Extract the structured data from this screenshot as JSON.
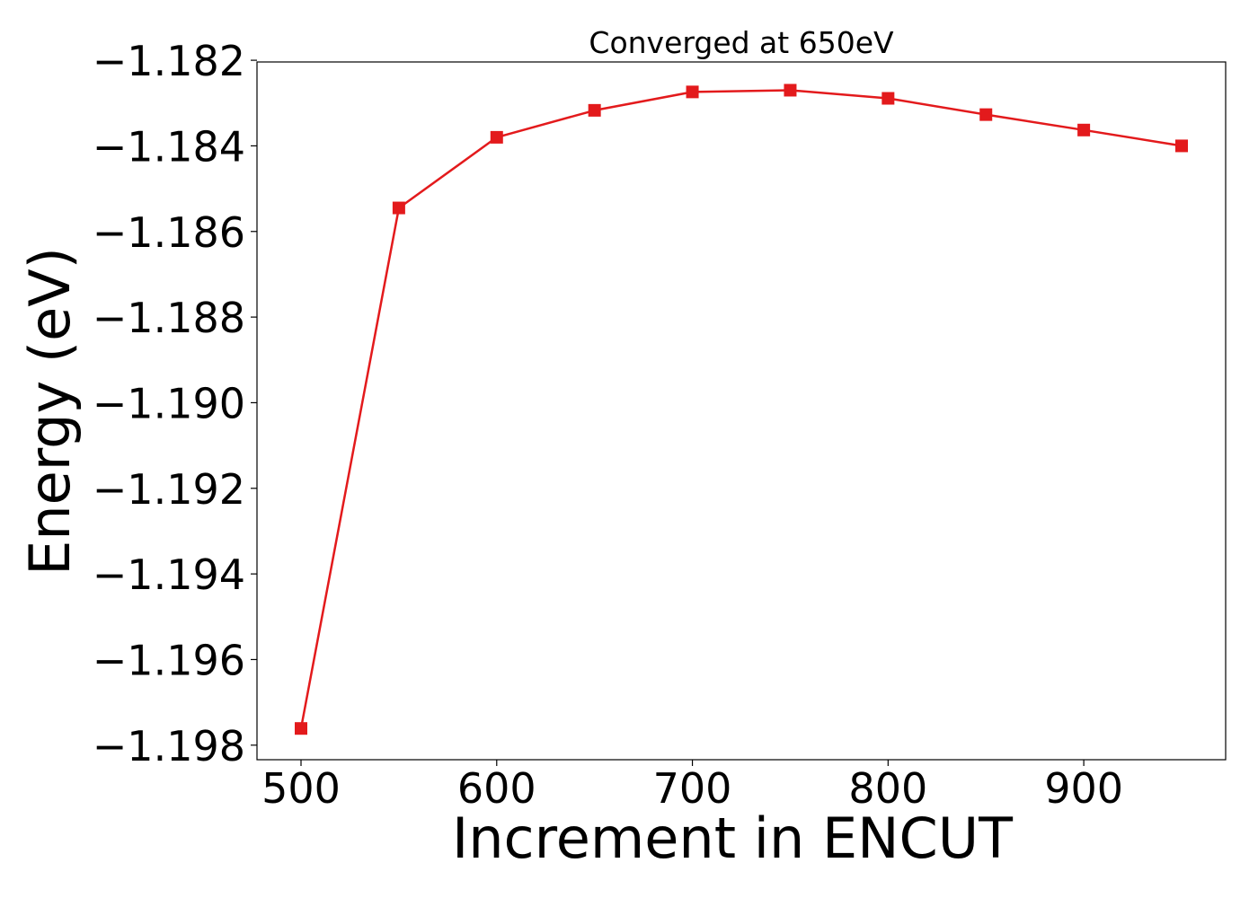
{
  "chart_data": {
    "type": "line",
    "title": "Converged at 650eV",
    "xlabel": "Increment in ENCUT",
    "ylabel": "Energy (eV)",
    "x": [
      500,
      550,
      600,
      650,
      700,
      750,
      800,
      850,
      900,
      950
    ],
    "series": [
      {
        "values": [
          -1.19761,
          -1.18545,
          -1.1838,
          -1.18317,
          -1.18274,
          -1.1827,
          -1.18289,
          -1.18327,
          -1.18363,
          -1.184
        ],
        "color": "#e31a1c",
        "marker": "square"
      }
    ],
    "xlim": [
      477.5,
      972.5
    ],
    "ylim": [
      -1.19834,
      -1.18204
    ],
    "xticks": [
      500,
      600,
      700,
      800,
      900
    ],
    "xtick_labels": [
      "500",
      "600",
      "700",
      "800",
      "900"
    ],
    "yticks": [
      -1.182,
      -1.184,
      -1.186,
      -1.188,
      -1.19,
      -1.192,
      -1.194,
      -1.196,
      -1.198
    ],
    "ytick_labels": [
      "−1.182",
      "−1.184",
      "−1.186",
      "−1.188",
      "−1.190",
      "−1.192",
      "−1.194",
      "−1.196",
      "−1.198"
    ],
    "grid": false,
    "legend": false
  }
}
